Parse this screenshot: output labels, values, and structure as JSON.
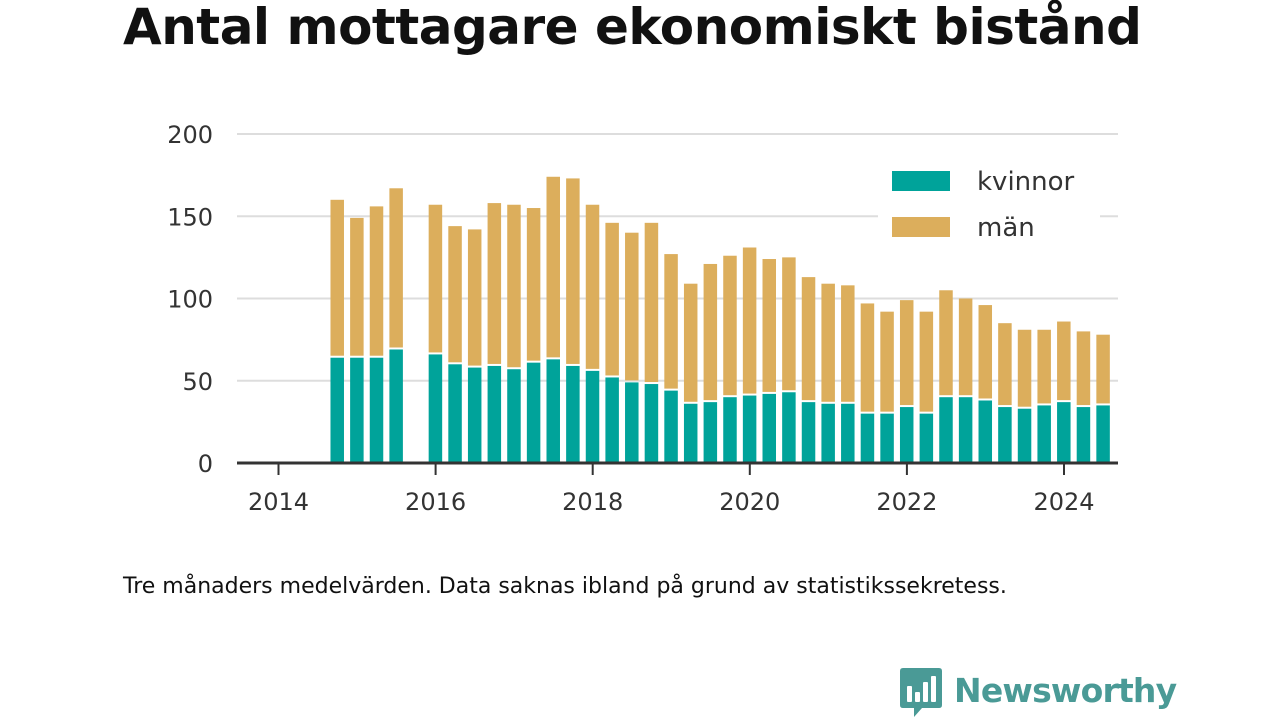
{
  "title": "Antal mottagare ekonomiskt bistånd",
  "caption": "Tre månaders medelvärden. Data saknas ibland på grund av statistikssekretess.",
  "logo": {
    "text": "Newsworthy",
    "icon": "chart-bubble-icon"
  },
  "colors": {
    "kvinnor": "#00a39a",
    "man": "#dcae5c",
    "grid": "#dddddd",
    "axis": "#333333",
    "text": "#333333"
  },
  "chart_data": {
    "type": "bar",
    "stacked": true,
    "title": "Antal mottagare ekonomiskt bistånd",
    "xlabel": "",
    "ylabel": "",
    "ylim": [
      0,
      200
    ],
    "yticks": [
      "0",
      "50",
      "100",
      "150",
      "200"
    ],
    "xticks": [
      "2014",
      "2016",
      "2018",
      "2020",
      "2022",
      "2024"
    ],
    "grid": true,
    "legend": "top-right",
    "x": [
      "2014-06",
      "2014-09",
      "2014-12",
      "2015-03",
      "2015-06",
      "2015-09",
      "2015-12",
      "2016-03",
      "2016-06",
      "2016-09",
      "2016-12",
      "2017-03",
      "2017-06",
      "2017-09",
      "2017-12",
      "2018-03",
      "2018-06",
      "2018-09",
      "2018-12",
      "2019-03",
      "2019-06",
      "2019-09",
      "2019-12",
      "2020-03",
      "2020-06",
      "2020-09",
      "2020-12",
      "2021-03",
      "2021-06",
      "2021-09",
      "2021-12",
      "2022-03",
      "2022-06",
      "2022-09",
      "2022-12",
      "2023-03",
      "2023-06",
      "2023-09",
      "2023-12",
      "2024-03",
      "2024-06"
    ],
    "series": [
      {
        "name": "kvinnor",
        "values": [
          64,
          64,
          64,
          69,
          null,
          66,
          60,
          58,
          59,
          57,
          61,
          63,
          59,
          56,
          52,
          49,
          48,
          44,
          36,
          37,
          40,
          41,
          42,
          43,
          37,
          36,
          36,
          30,
          30,
          34,
          30,
          40,
          40,
          38,
          34,
          33,
          35,
          37,
          34,
          35,
          null
        ]
      },
      {
        "name": "män",
        "values": [
          96,
          85,
          92,
          98,
          null,
          91,
          84,
          84,
          99,
          100,
          94,
          111,
          114,
          101,
          94,
          91,
          98,
          83,
          73,
          84,
          86,
          90,
          82,
          82,
          76,
          73,
          72,
          67,
          62,
          65,
          62,
          65,
          60,
          58,
          51,
          48,
          46,
          49,
          46,
          43,
          null
        ]
      }
    ]
  }
}
